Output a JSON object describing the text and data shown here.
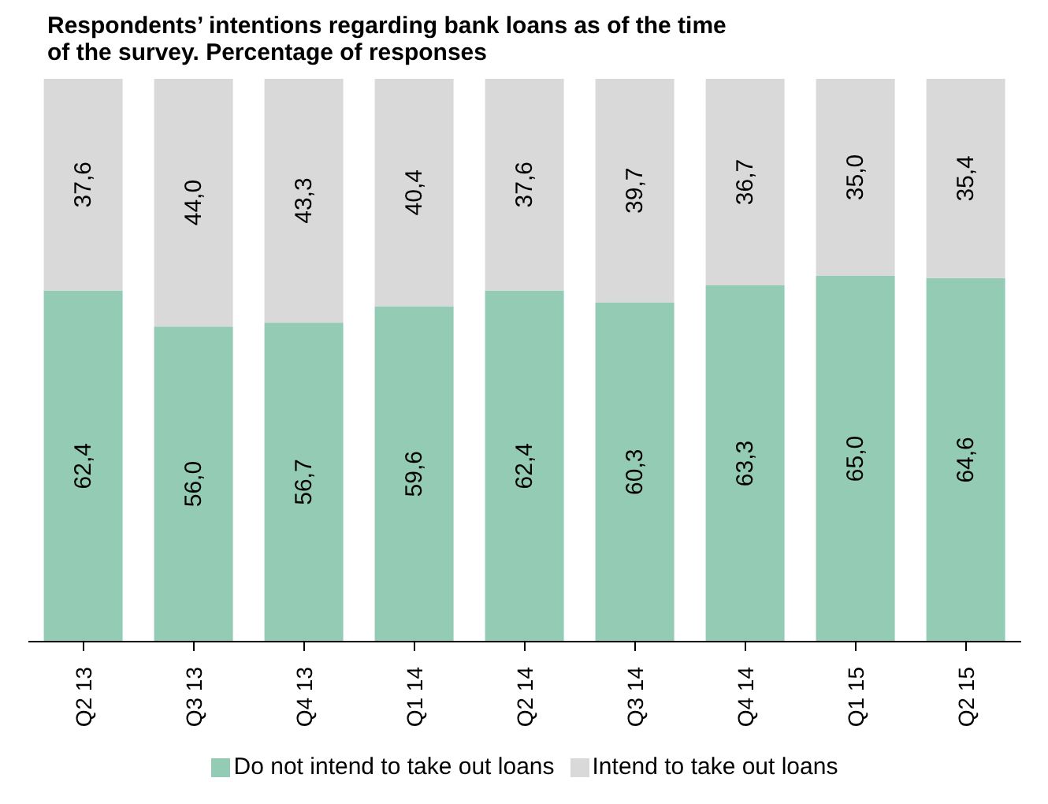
{
  "chart_data": {
    "type": "bar",
    "title": "Respondents’ intentions regarding bank loans as of the time of the survey. Percentage of responses",
    "categories": [
      "Q2 13",
      "Q3 13",
      "Q4 13",
      "Q1 14",
      "Q2 14",
      "Q3 14",
      "Q4 14",
      "Q1 15",
      "Q2 15"
    ],
    "stacked": true,
    "legend": "bottom",
    "grid": false,
    "series": [
      {
        "name": "Do not intend to take out loans",
        "color": "#93cbb5",
        "values": [
          62.4,
          56.0,
          56.7,
          59.6,
          62.4,
          60.3,
          63.3,
          65.0,
          64.6
        ],
        "value_labels": [
          "62,4",
          "56,0",
          "56,7",
          "59,6",
          "62,4",
          "60,3",
          "63,3",
          "65,0",
          "64,6"
        ]
      },
      {
        "name": "Intend to take out loans",
        "color": "#d9d9d9",
        "values": [
          37.6,
          44.0,
          43.3,
          40.4,
          37.6,
          39.7,
          36.7,
          35.0,
          35.4
        ],
        "value_labels": [
          "37,6",
          "44,0",
          "43,3",
          "40,4",
          "37,6",
          "39,7",
          "36,7",
          "35,0",
          "35,4"
        ]
      }
    ]
  }
}
